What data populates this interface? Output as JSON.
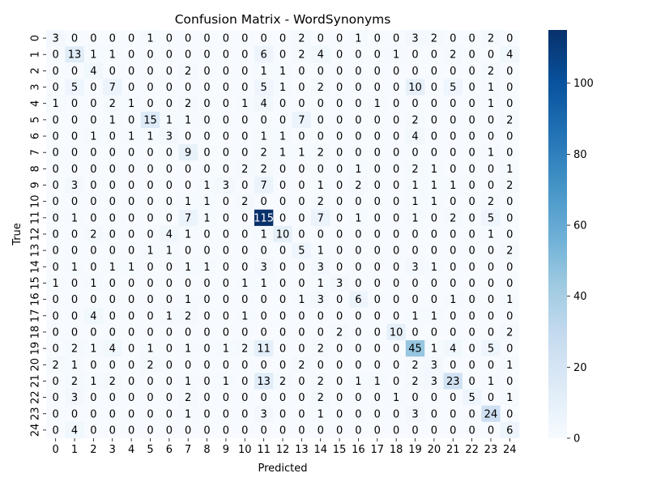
{
  "chart_data": {
    "type": "heatmap",
    "title": "Confusion Matrix - WordSynonyms",
    "xlabel": "Predicted",
    "ylabel": "True",
    "x_categories": [
      "0",
      "1",
      "2",
      "3",
      "4",
      "5",
      "6",
      "7",
      "8",
      "9",
      "10",
      "11",
      "12",
      "13",
      "14",
      "15",
      "16",
      "17",
      "18",
      "19",
      "20",
      "21",
      "22",
      "23",
      "24"
    ],
    "y_categories": [
      "0",
      "1",
      "2",
      "3",
      "4",
      "5",
      "6",
      "7",
      "8",
      "9",
      "10",
      "11",
      "12",
      "13",
      "14",
      "15",
      "16",
      "17",
      "18",
      "19",
      "20",
      "21",
      "22",
      "23",
      "24"
    ],
    "values": [
      [
        3,
        0,
        0,
        0,
        0,
        1,
        0,
        0,
        0,
        0,
        0,
        0,
        0,
        2,
        0,
        0,
        1,
        0,
        0,
        3,
        2,
        0,
        0,
        2,
        0
      ],
      [
        0,
        13,
        1,
        1,
        0,
        0,
        0,
        0,
        0,
        0,
        0,
        6,
        0,
        2,
        4,
        0,
        0,
        0,
        1,
        0,
        0,
        2,
        0,
        0,
        4
      ],
      [
        0,
        0,
        4,
        0,
        0,
        0,
        0,
        2,
        0,
        0,
        0,
        1,
        1,
        0,
        0,
        0,
        0,
        0,
        0,
        0,
        0,
        0,
        0,
        2,
        0
      ],
      [
        0,
        5,
        0,
        7,
        0,
        0,
        0,
        0,
        0,
        0,
        0,
        5,
        1,
        0,
        2,
        0,
        0,
        0,
        0,
        10,
        0,
        5,
        0,
        1,
        0
      ],
      [
        1,
        0,
        0,
        2,
        1,
        0,
        0,
        2,
        0,
        0,
        1,
        4,
        0,
        0,
        0,
        0,
        0,
        1,
        0,
        0,
        0,
        0,
        0,
        1,
        0
      ],
      [
        0,
        0,
        0,
        1,
        0,
        15,
        1,
        1,
        0,
        0,
        0,
        0,
        0,
        7,
        0,
        0,
        0,
        0,
        0,
        2,
        0,
        0,
        0,
        0,
        2
      ],
      [
        0,
        0,
        1,
        0,
        1,
        1,
        3,
        0,
        0,
        0,
        0,
        1,
        1,
        0,
        0,
        0,
        0,
        0,
        0,
        4,
        0,
        0,
        0,
        0,
        0
      ],
      [
        0,
        0,
        0,
        0,
        0,
        0,
        0,
        9,
        0,
        0,
        0,
        2,
        1,
        1,
        2,
        0,
        0,
        0,
        0,
        0,
        0,
        0,
        0,
        1,
        0
      ],
      [
        0,
        0,
        0,
        0,
        0,
        0,
        0,
        0,
        0,
        0,
        2,
        2,
        0,
        0,
        0,
        0,
        1,
        0,
        0,
        2,
        1,
        0,
        0,
        0,
        1
      ],
      [
        0,
        3,
        0,
        0,
        0,
        0,
        0,
        0,
        1,
        3,
        0,
        7,
        0,
        0,
        1,
        0,
        2,
        0,
        0,
        1,
        1,
        1,
        0,
        0,
        2
      ],
      [
        0,
        0,
        0,
        0,
        0,
        0,
        0,
        1,
        1,
        0,
        2,
        0,
        0,
        0,
        2,
        0,
        0,
        0,
        0,
        1,
        1,
        0,
        0,
        2,
        0
      ],
      [
        0,
        1,
        0,
        0,
        0,
        0,
        0,
        7,
        1,
        0,
        0,
        115,
        0,
        0,
        7,
        0,
        1,
        0,
        0,
        1,
        0,
        2,
        0,
        5,
        0
      ],
      [
        0,
        0,
        2,
        0,
        0,
        0,
        4,
        1,
        0,
        0,
        0,
        1,
        10,
        0,
        0,
        0,
        0,
        0,
        0,
        0,
        0,
        0,
        0,
        1,
        0
      ],
      [
        0,
        0,
        0,
        0,
        0,
        1,
        1,
        0,
        0,
        0,
        0,
        0,
        0,
        5,
        1,
        0,
        0,
        0,
        0,
        0,
        0,
        0,
        0,
        0,
        2
      ],
      [
        0,
        1,
        0,
        1,
        1,
        0,
        0,
        1,
        1,
        0,
        0,
        3,
        0,
        0,
        3,
        0,
        0,
        0,
        0,
        3,
        1,
        0,
        0,
        0,
        0
      ],
      [
        1,
        0,
        1,
        0,
        0,
        0,
        0,
        0,
        0,
        0,
        1,
        1,
        0,
        0,
        1,
        3,
        0,
        0,
        0,
        0,
        0,
        0,
        0,
        0,
        0
      ],
      [
        0,
        0,
        0,
        0,
        0,
        0,
        0,
        1,
        0,
        0,
        0,
        0,
        0,
        1,
        3,
        0,
        6,
        0,
        0,
        0,
        0,
        1,
        0,
        0,
        1
      ],
      [
        0,
        0,
        4,
        0,
        0,
        0,
        1,
        2,
        0,
        0,
        1,
        0,
        0,
        0,
        0,
        0,
        0,
        0,
        0,
        1,
        1,
        0,
        0,
        0,
        0
      ],
      [
        0,
        0,
        0,
        0,
        0,
        0,
        0,
        0,
        0,
        0,
        0,
        0,
        0,
        0,
        0,
        2,
        0,
        0,
        10,
        0,
        0,
        0,
        0,
        0,
        2
      ],
      [
        0,
        2,
        1,
        4,
        0,
        1,
        0,
        1,
        0,
        1,
        2,
        11,
        0,
        0,
        2,
        0,
        0,
        0,
        0,
        45,
        1,
        4,
        0,
        5,
        0
      ],
      [
        2,
        1,
        0,
        0,
        0,
        2,
        0,
        0,
        0,
        0,
        0,
        0,
        0,
        2,
        0,
        0,
        0,
        0,
        0,
        2,
        3,
        0,
        0,
        0,
        1
      ],
      [
        0,
        2,
        1,
        2,
        0,
        0,
        0,
        1,
        0,
        1,
        0,
        13,
        2,
        0,
        2,
        0,
        1,
        1,
        0,
        2,
        3,
        23,
        0,
        1,
        0
      ],
      [
        0,
        3,
        0,
        0,
        0,
        0,
        0,
        2,
        0,
        0,
        0,
        0,
        0,
        0,
        2,
        0,
        0,
        0,
        1,
        0,
        0,
        0,
        5,
        0,
        1
      ],
      [
        0,
        0,
        0,
        0,
        0,
        0,
        0,
        1,
        0,
        0,
        0,
        3,
        0,
        0,
        1,
        0,
        0,
        0,
        0,
        3,
        0,
        0,
        0,
        24,
        0
      ],
      [
        0,
        4,
        0,
        0,
        0,
        0,
        0,
        0,
        0,
        0,
        0,
        0,
        0,
        0,
        0,
        0,
        0,
        0,
        0,
        0,
        0,
        0,
        0,
        0,
        6
      ]
    ],
    "vmin": 0,
    "vmax": 115,
    "colormap": "Blues",
    "colorbar_ticks": [
      0,
      20,
      40,
      60,
      80,
      100
    ],
    "annotations": true,
    "grid": false,
    "colors": {
      "low": "#f7fbff",
      "high": "#08306b",
      "text_dark": "#000000",
      "text_light": "#ffffff"
    }
  }
}
